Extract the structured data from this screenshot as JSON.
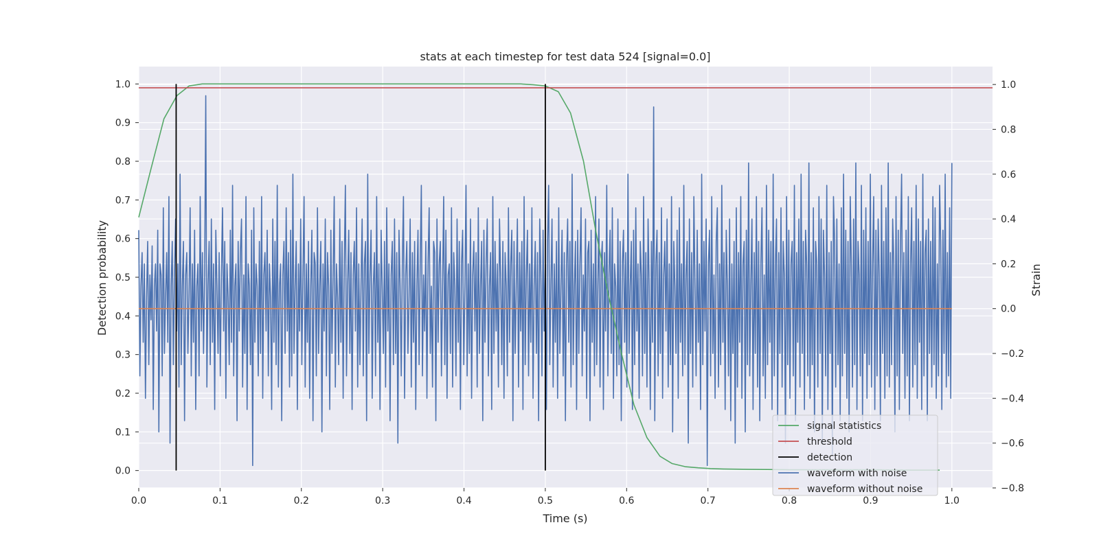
{
  "chart_data": {
    "type": "line",
    "title": "stats at each timestep for test data 524 [signal=0.0]",
    "xlabel": "Time (s)",
    "ylabel": "Detection probability",
    "y2label": "Strain",
    "xlim": [
      0.0,
      1.05
    ],
    "ylim": [
      -0.045,
      1.045
    ],
    "y2lim": [
      -0.8,
      1.08
    ],
    "xticks": [
      "0.0",
      "0.1",
      "0.2",
      "0.3",
      "0.4",
      "0.5",
      "0.6",
      "0.7",
      "0.8",
      "0.9",
      "1.0"
    ],
    "yticks": [
      "0.0",
      "0.1",
      "0.2",
      "0.3",
      "0.4",
      "0.5",
      "0.6",
      "0.7",
      "0.8",
      "0.9",
      "1.0"
    ],
    "y2ticks": [
      "−0.8",
      "−0.6",
      "−0.4",
      "−0.2",
      "0.0",
      "0.2",
      "0.4",
      "0.6",
      "0.8",
      "1.0"
    ],
    "grid": true,
    "legend_position": "lower-right",
    "colors": {
      "background": "#eaeaf2",
      "grid": "#ffffff",
      "signal_statistics": "#55a868",
      "threshold": "#c44e52",
      "detection": "#000000",
      "waveform_with_noise": "#4c72b0",
      "waveform_without_noise": "#dd8452"
    },
    "series": [
      {
        "name": "signal statistics",
        "axis": "left",
        "x": [
          0.0,
          0.015,
          0.031,
          0.047,
          0.062,
          0.078,
          0.1,
          0.2,
          0.3,
          0.4,
          0.47,
          0.485,
          0.5,
          0.516,
          0.531,
          0.547,
          0.562,
          0.578,
          0.594,
          0.609,
          0.625,
          0.641,
          0.656,
          0.672,
          0.688,
          0.703,
          0.719,
          0.75,
          0.8,
          0.85,
          0.9,
          0.95,
          0.985
        ],
        "y": [
          0.655,
          0.78,
          0.91,
          0.97,
          0.995,
          1.0,
          1.0,
          1.0,
          1.0,
          1.0,
          1.0,
          0.998,
          0.995,
          0.98,
          0.925,
          0.8,
          0.62,
          0.45,
          0.3,
          0.17,
          0.085,
          0.037,
          0.018,
          0.01,
          0.007,
          0.005,
          0.004,
          0.003,
          0.002,
          0.002,
          0.002,
          0.001,
          0.001
        ]
      },
      {
        "name": "threshold",
        "axis": "left",
        "x": [
          0.0,
          1.05
        ],
        "y": [
          0.99,
          0.99
        ]
      },
      {
        "name": "detection",
        "axis": "left",
        "segments": [
          {
            "x": 0.046,
            "y0": 0.0,
            "y1": 1.0
          },
          {
            "x": 0.5,
            "y0": 0.0,
            "y1": 1.0
          }
        ]
      },
      {
        "name": "waveform with noise",
        "axis": "right",
        "x_start": 0.0,
        "x_end": 1.0,
        "y": [
          0.35,
          -0.3,
          0.1,
          0.25,
          -0.15,
          0.2,
          -0.4,
          0.05,
          0.3,
          -0.25,
          0.15,
          -0.05,
          0.28,
          -0.45,
          0.1,
          0.2,
          -0.1,
          0.35,
          -0.55,
          0.2,
          0.15,
          -0.3,
          0.45,
          -0.2,
          0.05,
          0.25,
          -0.15,
          0.5,
          -0.6,
          0.1,
          0.3,
          -0.25,
          0.15,
          0.4,
          -0.1,
          0.2,
          -0.35,
          0.6,
          -0.25,
          0.1,
          0.3,
          -0.5,
          0.15,
          0.25,
          -0.2,
          0.05,
          0.45,
          -0.3,
          0.2,
          -0.15,
          0.35,
          -0.45,
          0.1,
          0.2,
          -0.3,
          0.5,
          -0.1,
          0.25,
          -0.2,
          0.15,
          0.95,
          -0.35,
          0.1,
          0.3,
          -0.25,
          0.4,
          -0.15,
          0.2,
          -0.45,
          0.35,
          0.1,
          -0.2,
          0.25,
          -0.3,
          0.15,
          0.45,
          -0.1,
          0.3,
          -0.4,
          0.2,
          0.05,
          -0.25,
          0.35,
          -0.15,
          0.55,
          -0.3,
          0.1,
          0.2,
          -0.5,
          0.3,
          -0.1,
          0.25,
          0.4,
          -0.35,
          0.15,
          -0.2,
          0.5,
          -0.45,
          0.2,
          0.1,
          -0.25,
          0.35,
          -0.7,
          0.45,
          -0.15,
          0.2,
          0.1,
          -0.3,
          0.3,
          -0.2,
          0.5,
          -0.4,
          0.15,
          0.25,
          -0.1,
          0.35,
          -0.3,
          0.2,
          0.05,
          -0.45,
          0.4,
          -0.15,
          0.3,
          -0.25,
          0.55,
          -0.35,
          0.1,
          0.2,
          -0.5,
          0.15,
          0.3,
          -0.2,
          0.45,
          -0.1,
          0.25,
          -0.35,
          0.35,
          -0.3,
          0.6,
          -0.2,
          0.1,
          0.3,
          -0.45,
          0.2,
          -0.1,
          0.4,
          -0.25,
          0.15,
          0.5,
          -0.35,
          0.2,
          -0.15,
          0.3,
          -0.4,
          0.1,
          0.35,
          -0.5,
          0.25,
          0.2,
          -0.3,
          0.45,
          -0.2,
          0.1,
          0.3,
          -0.55,
          0.2,
          -0.1,
          0.4,
          -0.3,
          0.25,
          0.1,
          -0.45,
          0.35,
          -0.2,
          0.15,
          0.5,
          -0.35,
          0.2,
          0.05,
          -0.25,
          0.4,
          -0.15,
          0.3,
          -0.4,
          0.2,
          0.55,
          -0.3,
          0.1,
          0.35,
          -0.2,
          0.25,
          -0.45,
          0.15,
          0.3,
          -0.1,
          0.45,
          -0.35,
          0.2,
          -0.25,
          0.1,
          0.4,
          -0.3,
          0.2,
          0.3,
          -0.5,
          0.6,
          -0.2,
          0.15,
          0.35,
          -0.4,
          0.1,
          0.25,
          -0.3,
          0.5,
          -0.15,
          0.2,
          -0.45,
          0.35,
          0.1,
          -0.2,
          0.3,
          -0.35,
          0.45,
          -0.1,
          0.2,
          -0.5,
          0.15,
          0.3,
          -0.25,
          0.4,
          -0.2,
          0.25,
          -0.6,
          0.35,
          0.1,
          -0.3,
          0.2,
          0.5,
          -0.4,
          0.15,
          0.3,
          -0.2,
          0.05,
          0.4,
          -0.35,
          0.25,
          -0.15,
          0.3,
          -0.45,
          0.1,
          0.35,
          -0.25,
          0.2,
          0.55,
          -0.3,
          0.15,
          -0.1,
          0.3,
          -0.4,
          0.2,
          0.45,
          -0.2,
          0.1,
          -0.35,
          0.3,
          0.25,
          -0.5,
          0.4,
          -0.15,
          0.2,
          0.3,
          -0.3,
          0.1,
          0.5,
          -0.25,
          0.35,
          -0.4,
          0.15,
          0.2,
          -0.2,
          0.45,
          -0.35,
          0.25,
          0.1,
          -0.3,
          0.4,
          -0.15,
          0.3,
          -0.45,
          0.2,
          0.35,
          -0.25,
          0.1,
          0.55,
          -0.3,
          0.2,
          -0.2,
          0.4,
          -0.4,
          0.15,
          0.3,
          -0.1,
          0.25,
          -0.35,
          0.45,
          -0.2,
          0.1,
          0.3,
          -0.5,
          0.35,
          -0.15,
          0.2,
          0.4,
          -0.3,
          0.1,
          0.25,
          -0.45,
          0.5,
          -0.2,
          0.3,
          -0.1,
          0.2,
          -0.35,
          0.4,
          0.15,
          -0.25,
          0.3,
          -0.4,
          0.25,
          0.1,
          -0.3,
          0.45,
          -0.15,
          0.2,
          0.35,
          -0.5,
          0.3,
          -0.2,
          0.1,
          0.4,
          -0.35,
          0.25,
          -0.1,
          0.3,
          -0.45,
          0.5,
          -0.25,
          0.15,
          0.35,
          -0.3,
          0.2,
          -0.15,
          0.45,
          -0.4,
          0.1,
          0.3,
          -0.2,
          0.25,
          -0.5,
          0.4,
          0.15,
          -0.3,
          0.35,
          -0.1,
          0.2,
          -0.45,
          0.3,
          0.55,
          -0.25,
          0.1,
          0.4,
          -0.35,
          0.2,
          -0.15,
          0.3,
          -0.4,
          0.45,
          -0.2,
          0.1,
          0.35,
          -0.3,
          0.25,
          -0.5,
          0.2,
          0.4,
          -0.15,
          0.3,
          -0.35,
          0.6,
          -0.25,
          0.1,
          0.3,
          -0.45,
          0.35,
          -0.2,
          0.2,
          0.45,
          -0.3,
          0.15,
          -0.1,
          0.4,
          -0.4,
          0.25,
          0.3,
          -0.5,
          0.35,
          -0.15,
          0.2,
          -0.3,
          0.5,
          -0.25,
          0.1,
          0.4,
          -0.35,
          0.2,
          0.3,
          -0.45,
          0.25,
          -0.1,
          0.55,
          -0.3,
          0.15,
          0.35,
          -0.2,
          0.45,
          -0.4,
          0.2,
          0.1,
          -0.3,
          0.4,
          -0.25,
          0.3,
          -0.5,
          0.2,
          0.35,
          -0.15,
          0.25,
          -0.35,
          0.6,
          -0.2,
          0.1,
          0.3,
          -0.45,
          0.35,
          -0.25,
          0.45,
          -0.1,
          0.2,
          -0.4,
          0.3,
          0.15,
          -0.3,
          0.5,
          -0.2,
          0.25,
          -0.35,
          0.4,
          0.1,
          -0.45,
          0.3,
          -0.15,
          0.9,
          -0.5,
          0.2,
          0.35,
          -0.3,
          0.25,
          -0.2,
          0.45,
          -0.4,
          0.15,
          0.3,
          -0.1,
          0.4,
          -0.35,
          0.2,
          -0.25,
          0.5,
          -0.55,
          0.3,
          0.1,
          -0.2,
          0.35,
          -0.4,
          0.45,
          -0.15,
          0.2,
          -0.3,
          0.55,
          -0.25,
          0.15,
          0.3,
          -0.6,
          0.4,
          -0.2,
          0.25,
          -0.35,
          0.5,
          0.1,
          -0.3,
          0.35,
          -0.15,
          0.2,
          -0.45,
          0.6,
          -0.25,
          0.3,
          -0.1,
          0.4,
          -0.7,
          0.2,
          0.35,
          -0.3,
          0.5,
          -0.2,
          0.15,
          -0.4,
          0.3,
          0.45,
          -0.35,
          0.2,
          -0.25,
          0.55,
          -0.15,
          0.25,
          -0.45,
          0.35,
          0.1,
          -0.3,
          0.4,
          -0.5,
          0.2,
          -0.2,
          0.3,
          -0.6,
          0.45,
          -0.35,
          0.25,
          -0.15,
          0.5,
          -0.4,
          0.2,
          0.3,
          -0.55,
          0.35,
          -0.25,
          0.65,
          -0.3,
          0.1,
          0.4,
          -0.45,
          0.25,
          -0.2,
          0.5,
          -0.35,
          0.3,
          -0.5,
          0.2,
          0.45,
          -0.3,
          0.15,
          -0.4,
          0.55,
          -0.25,
          0.35,
          -0.15,
          0.3,
          -0.45,
          0.6,
          -0.3,
          0.2,
          0.4,
          -0.5,
          0.25,
          -0.2,
          0.45,
          -0.35,
          0.3,
          0.15,
          -0.6,
          0.5,
          -0.25,
          0.35,
          -0.4,
          0.2,
          0.3,
          -0.3,
          0.55,
          -0.5,
          0.25,
          -0.15,
          0.4,
          -0.35,
          0.6,
          -0.2,
          0.3,
          -0.45,
          0.35,
          0.2,
          -0.3,
          0.65,
          -0.4,
          0.25,
          -0.25,
          0.45,
          -0.55,
          0.3,
          0.2,
          -0.35,
          0.5,
          -0.2,
          0.4,
          -0.6,
          0.35,
          0.15,
          -0.3,
          0.55,
          -0.45,
          0.25,
          -0.2,
          0.3,
          -0.65,
          0.5,
          0.3,
          -0.35,
          0.4,
          -0.25,
          0.2,
          -0.5,
          0.45,
          -0.3,
          0.6,
          -0.2,
          0.35,
          -0.4,
          0.3,
          -0.55,
          0.5,
          0.2,
          -0.35,
          0.4,
          -0.25,
          0.65,
          -0.45,
          0.3,
          0.15,
          -0.3,
          0.55,
          -0.5,
          0.35,
          -0.2,
          0.45,
          -0.4,
          0.3,
          -0.25,
          0.6,
          -0.35,
          0.2,
          0.5,
          -0.45,
          0.35,
          -0.3,
          0.4,
          0.15,
          -0.5,
          0.55,
          -0.2,
          0.3,
          -0.4,
          0.45,
          -0.3,
          0.65,
          -0.35,
          0.25,
          -0.25,
          0.4,
          0.2,
          -0.55,
          0.5,
          -0.3,
          0.35,
          -0.45,
          0.3,
          0.6,
          -0.2,
          0.25,
          -0.4,
          0.35,
          -0.3,
          0.5,
          -0.5,
          0.2,
          0.45,
          -0.35,
          0.3,
          -0.25,
          0.55,
          -0.4,
          0.4,
          -0.15,
          0.3,
          -0.45,
          0.6,
          -0.3,
          0.25,
          0.35,
          -0.5,
          0.4,
          -0.2,
          0.3,
          -0.35,
          0.5,
          -0.25,
          0.45,
          -0.4,
          0.2,
          -0.3,
          0.55,
          0.3,
          -0.45,
          0.35,
          -0.2,
          0.6,
          -0.35,
          0.25,
          -0.3,
          0.45,
          -0.4,
          0.65
        ]
      },
      {
        "name": "waveform without noise",
        "axis": "right",
        "x": [
          0.0,
          1.0
        ],
        "y": [
          0.0,
          0.0
        ]
      }
    ]
  }
}
